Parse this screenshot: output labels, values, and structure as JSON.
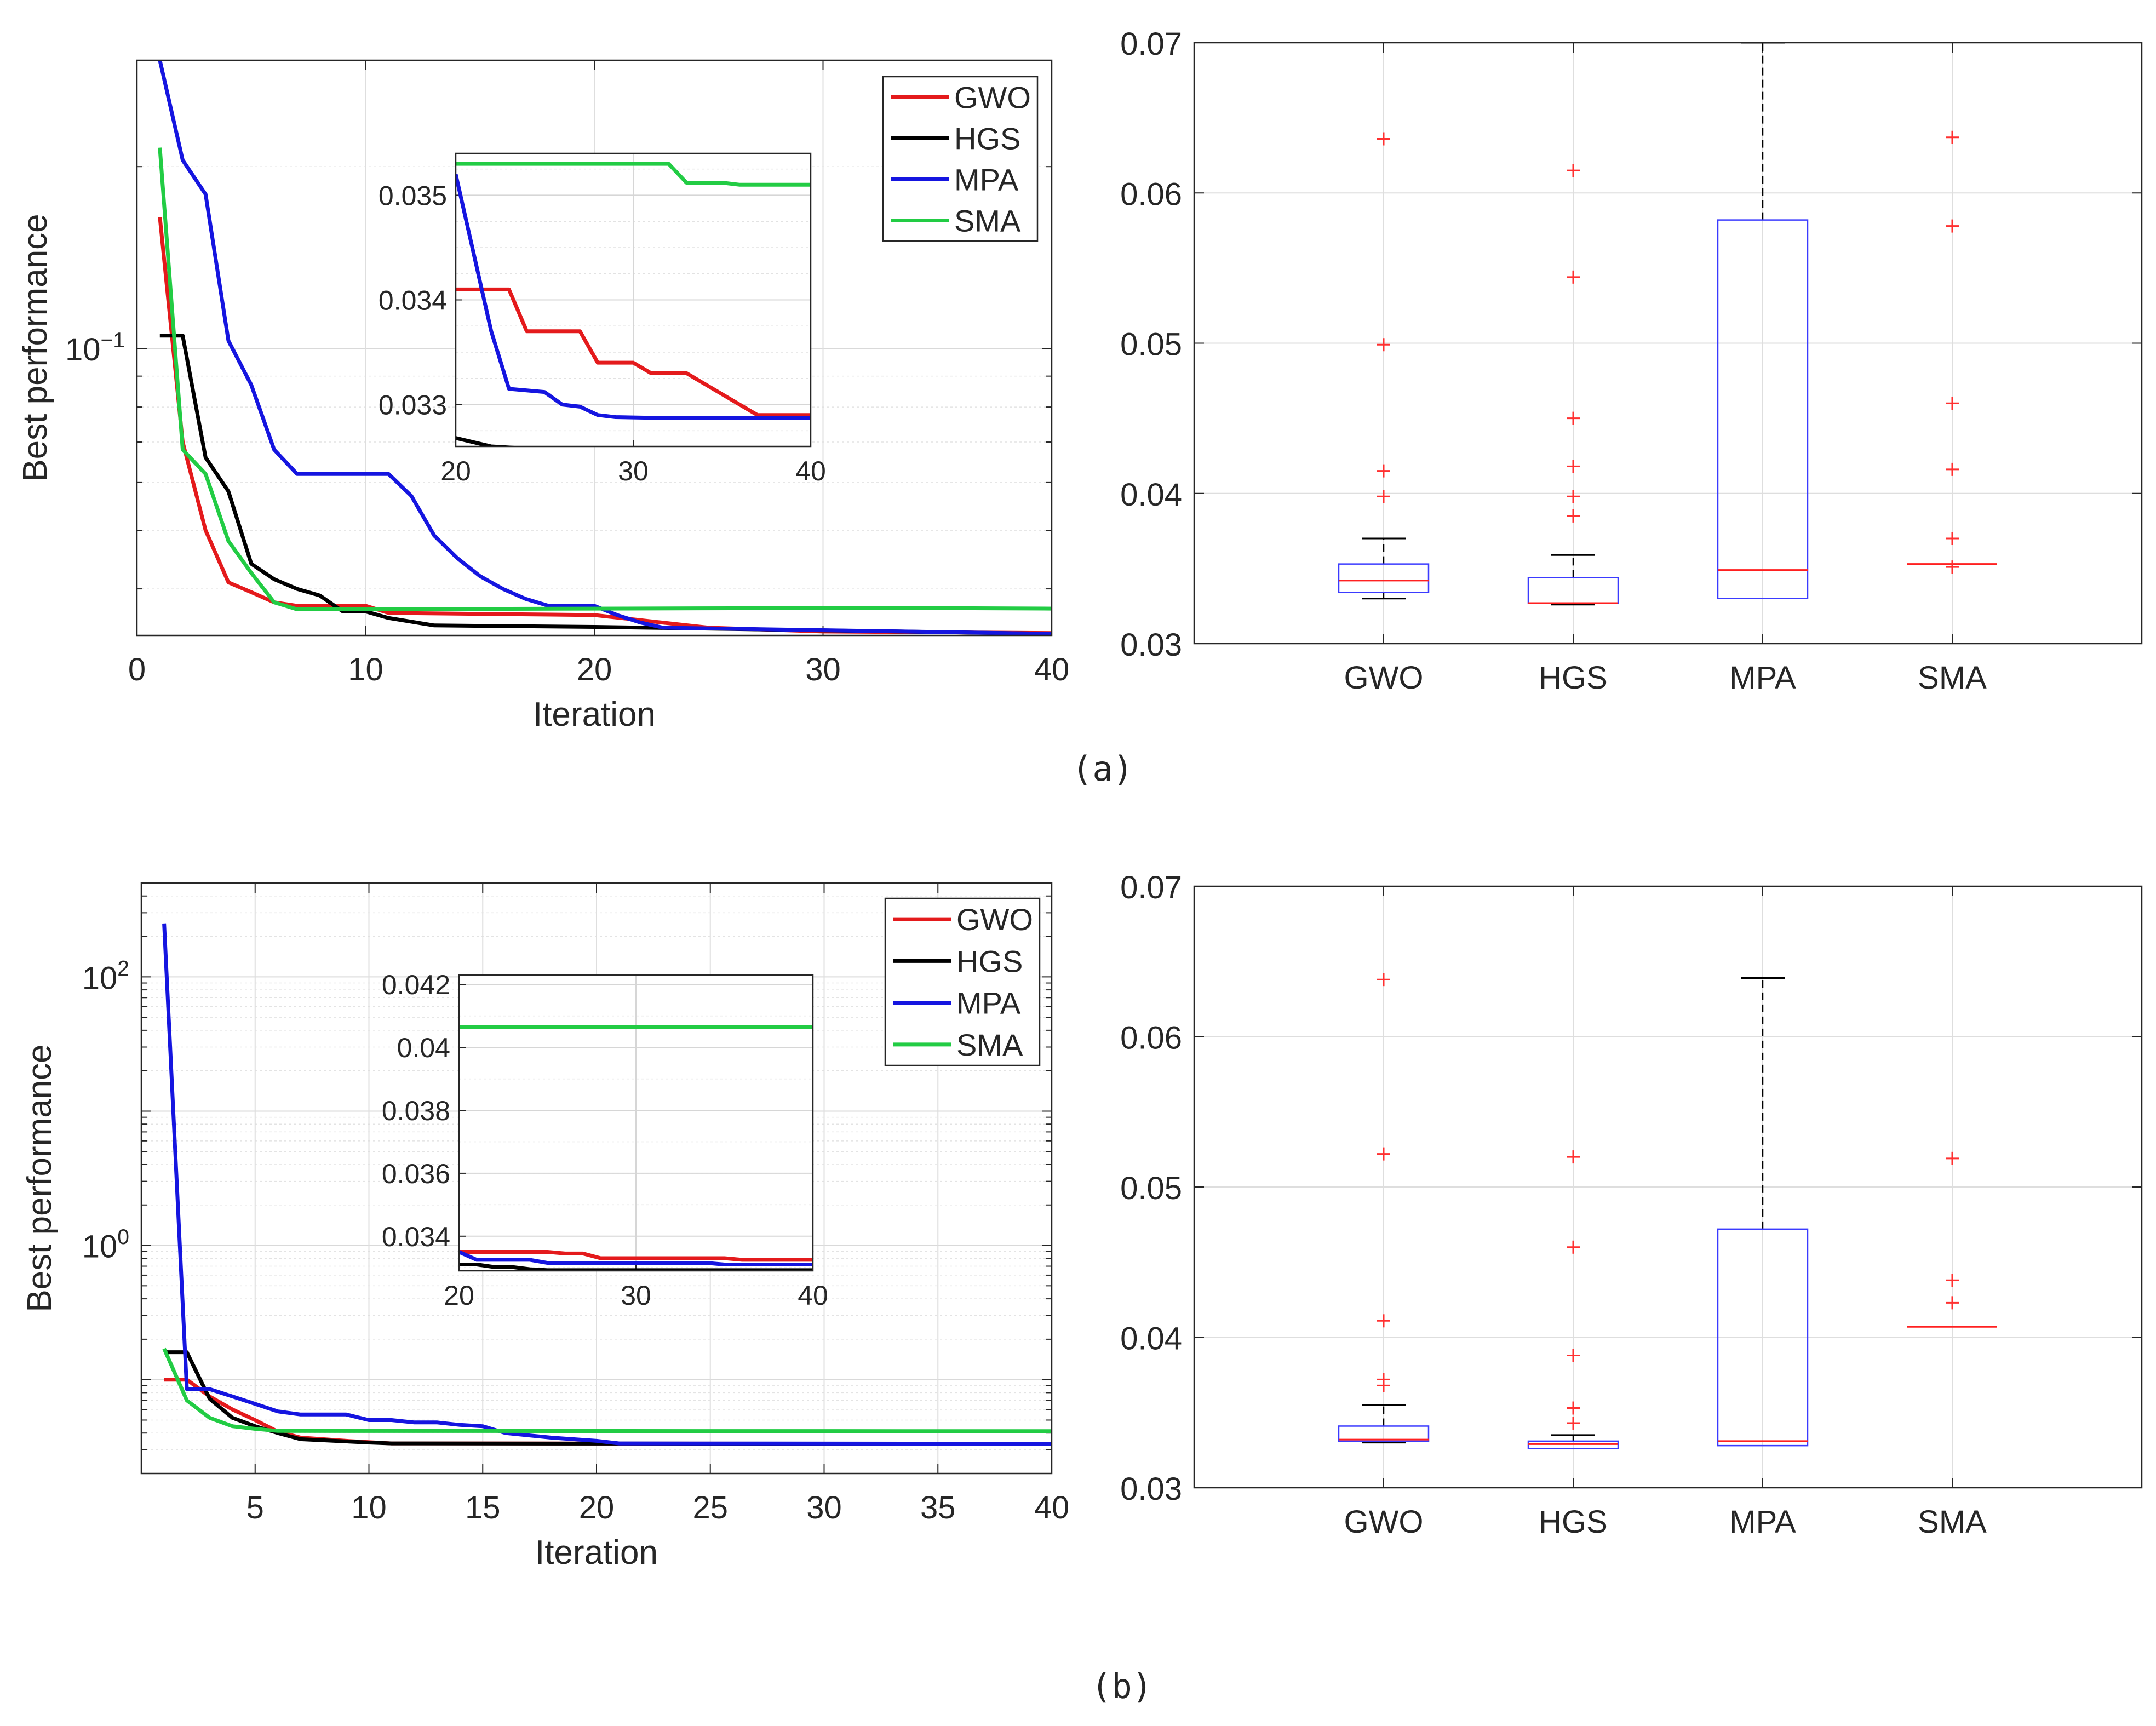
{
  "figure": {
    "caption_a": "(a)",
    "caption_b": "(b)"
  },
  "colors": {
    "GWO": "#e41a1c",
    "HGS": "#000000",
    "MPA": "#1515e0",
    "SMA": "#22cc44",
    "box": "#3b3bff",
    "median": "#ff2020",
    "outlier": "#ff3030",
    "whisker": "#000000"
  },
  "chart_data": [
    {
      "id": "a_conv",
      "type": "line",
      "xlabel": "Iteration",
      "ylabel": "Best performance",
      "xscale": "linear",
      "yscale": "log",
      "xlim": [
        0,
        40
      ],
      "ylim": [
        0.0335,
        0.3
      ],
      "xticks": [
        0,
        10,
        20,
        30,
        40
      ],
      "xtick_labels": [
        "0",
        "10",
        "20",
        "30",
        "40"
      ],
      "yticks": [
        0.1
      ],
      "ytick_labels": [
        {
          "base": "10",
          "exp": "−1"
        }
      ],
      "legend": "top-right",
      "series": [
        {
          "name": "GWO",
          "points": [
            [
              1,
              0.165
            ],
            [
              2,
              0.07
            ],
            [
              3,
              0.05
            ],
            [
              4,
              0.041
            ],
            [
              5,
              0.0395
            ],
            [
              6,
              0.038
            ],
            [
              7,
              0.0375
            ],
            [
              10,
              0.0375
            ],
            [
              11,
              0.0365
            ],
            [
              20,
              0.0362
            ],
            [
              25,
              0.0345
            ],
            [
              30,
              0.034
            ],
            [
              40,
              0.0338
            ]
          ]
        },
        {
          "name": "HGS",
          "points": [
            [
              1,
              0.105
            ],
            [
              2,
              0.105
            ],
            [
              3,
              0.066
            ],
            [
              4,
              0.058
            ],
            [
              5,
              0.044
            ],
            [
              6,
              0.0415
            ],
            [
              7,
              0.04
            ],
            [
              8,
              0.039
            ],
            [
              9,
              0.0367
            ],
            [
              10,
              0.0367
            ],
            [
              11,
              0.0358
            ],
            [
              13,
              0.0348
            ],
            [
              20,
              0.0346
            ],
            [
              40,
              0.0337
            ]
          ]
        },
        {
          "name": "MPA",
          "points": [
            [
              1,
              0.3
            ],
            [
              2,
              0.205
            ],
            [
              3,
              0.18
            ],
            [
              4,
              0.103
            ],
            [
              5,
              0.087
            ],
            [
              6,
              0.068
            ],
            [
              7,
              0.062
            ],
            [
              11,
              0.062
            ],
            [
              12,
              0.057
            ],
            [
              13,
              0.049
            ],
            [
              14,
              0.045
            ],
            [
              15,
              0.042
            ],
            [
              16,
              0.04
            ],
            [
              17,
              0.0385
            ],
            [
              18,
              0.0375
            ],
            [
              20,
              0.0375
            ],
            [
              21,
              0.0362
            ],
            [
              22,
              0.0352
            ],
            [
              23,
              0.0345
            ],
            [
              40,
              0.0337
            ]
          ]
        },
        {
          "name": "SMA",
          "points": [
            [
              1,
              0.215
            ],
            [
              2,
              0.068
            ],
            [
              3,
              0.062
            ],
            [
              4,
              0.048
            ],
            [
              5,
              0.0425
            ],
            [
              6,
              0.038
            ],
            [
              7,
              0.037
            ],
            [
              33,
              0.0372
            ],
            [
              40,
              0.0371
            ]
          ]
        }
      ],
      "inset": {
        "xlim": [
          20,
          40
        ],
        "ylim": [
          0.0326,
          0.0354
        ],
        "xticks": [
          20,
          30,
          40
        ],
        "xtick_labels": [
          "20",
          "30",
          "40"
        ],
        "yticks": [
          0.033,
          0.034,
          0.035
        ],
        "ytick_labels": [
          "0.033",
          "0.034",
          "0.035"
        ],
        "series": [
          {
            "name": "GWO",
            "points": [
              [
                20,
                0.0341
              ],
              [
                23,
                0.0341
              ],
              [
                24,
                0.0337
              ],
              [
                27,
                0.0337
              ],
              [
                28,
                0.0334
              ],
              [
                30,
                0.0334
              ],
              [
                31,
                0.0333
              ],
              [
                33,
                0.0333
              ],
              [
                34,
                0.0332
              ],
              [
                35,
                0.0331
              ],
              [
                36,
                0.033
              ],
              [
                37,
                0.0329
              ],
              [
                40,
                0.0329
              ]
            ]
          },
          {
            "name": "HGS",
            "points": [
              [
                20,
                0.03268
              ],
              [
                22,
                0.0326
              ],
              [
                24,
                0.03258
              ],
              [
                40,
                0.03256
              ]
            ]
          },
          {
            "name": "MPA",
            "points": [
              [
                20,
                0.0352
              ],
              [
                22,
                0.0337
              ],
              [
                23,
                0.03315
              ],
              [
                25,
                0.03312
              ],
              [
                26,
                0.033
              ],
              [
                27,
                0.03298
              ],
              [
                28,
                0.0329
              ],
              [
                29,
                0.03288
              ],
              [
                32,
                0.03287
              ],
              [
                40,
                0.03287
              ]
            ]
          },
          {
            "name": "SMA",
            "points": [
              [
                20,
                0.0353
              ],
              [
                32,
                0.0353
              ],
              [
                33,
                0.03512
              ],
              [
                35,
                0.03512
              ],
              [
                36,
                0.0351
              ],
              [
                40,
                0.0351
              ]
            ]
          }
        ]
      }
    },
    {
      "id": "a_box",
      "type": "box",
      "ylim": [
        0.03,
        0.07
      ],
      "yticks": [
        0.03,
        0.04,
        0.05,
        0.06,
        0.07
      ],
      "ytick_labels": [
        "0.03",
        "0.04",
        "0.05",
        "0.06",
        "0.07"
      ],
      "categories": [
        "GWO",
        "HGS",
        "MPA",
        "SMA"
      ],
      "boxes": [
        {
          "name": "GWO",
          "whisker_low": 0.033,
          "q1": 0.0334,
          "median": 0.0342,
          "q3": 0.0353,
          "whisker_high": 0.037,
          "outliers": [
            0.0398,
            0.0415,
            0.0499,
            0.0636
          ]
        },
        {
          "name": "HGS",
          "whisker_low": 0.0326,
          "q1": 0.0327,
          "median": 0.0327,
          "q3": 0.0344,
          "whisker_high": 0.0359,
          "outliers": [
            0.0385,
            0.0398,
            0.0418,
            0.045,
            0.0544,
            0.0615
          ]
        },
        {
          "name": "MPA",
          "whisker_low": 0.033,
          "q1": 0.033,
          "median": 0.0349,
          "q3": 0.0582,
          "whisker_high": 0.07,
          "outliers": []
        },
        {
          "name": "SMA",
          "whisker_low": 0.0353,
          "q1": 0.0353,
          "median": 0.0353,
          "q3": 0.0353,
          "whisker_high": 0.0353,
          "outliers": [
            0.0351,
            0.037,
            0.0416,
            0.046,
            0.0578,
            0.0637
          ]
        }
      ]
    },
    {
      "id": "b_conv",
      "type": "line",
      "xlabel": "Iteration",
      "ylabel": "Best performance",
      "xscale": "linear",
      "yscale": "log",
      "xlim": [
        0,
        40
      ],
      "ylim": [
        0.02,
        500
      ],
      "xticks": [
        5,
        10,
        15,
        20,
        25,
        30,
        35,
        40
      ],
      "xtick_labels": [
        "5",
        "10",
        "15",
        "20",
        "25",
        "30",
        "35",
        "40"
      ],
      "yticks": [
        1,
        100
      ],
      "ytick_labels": [
        {
          "base": "10",
          "exp": "0"
        },
        {
          "base": "10",
          "exp": "2"
        }
      ],
      "legend": "top-right",
      "series": [
        {
          "name": "GWO",
          "points": [
            [
              1,
              0.1
            ],
            [
              2,
              0.1
            ],
            [
              3,
              0.075
            ],
            [
              4,
              0.06
            ],
            [
              5,
              0.05
            ],
            [
              6,
              0.041
            ],
            [
              7,
              0.037
            ],
            [
              9,
              0.035
            ],
            [
              11,
              0.0335
            ],
            [
              40,
              0.0333
            ]
          ]
        },
        {
          "name": "HGS",
          "points": [
            [
              1,
              0.16
            ],
            [
              2,
              0.16
            ],
            [
              3,
              0.072
            ],
            [
              4,
              0.052
            ],
            [
              5,
              0.045
            ],
            [
              6,
              0.04
            ],
            [
              7,
              0.036
            ],
            [
              10,
              0.034
            ],
            [
              11,
              0.0335
            ],
            [
              40,
              0.0332
            ]
          ]
        },
        {
          "name": "MPA",
          "points": [
            [
              1,
              250
            ],
            [
              2,
              0.085
            ],
            [
              3,
              0.085
            ],
            [
              4,
              0.075
            ],
            [
              5,
              0.066
            ],
            [
              6,
              0.058
            ],
            [
              7,
              0.055
            ],
            [
              9,
              0.055
            ],
            [
              10,
              0.05
            ],
            [
              11,
              0.05
            ],
            [
              12,
              0.048
            ],
            [
              13,
              0.048
            ],
            [
              14,
              0.046
            ],
            [
              15,
              0.045
            ],
            [
              16,
              0.04
            ],
            [
              18,
              0.037
            ],
            [
              20,
              0.035
            ],
            [
              21,
              0.0335
            ],
            [
              40,
              0.0333
            ]
          ]
        },
        {
          "name": "SMA",
          "points": [
            [
              1,
              0.17
            ],
            [
              2,
              0.07
            ],
            [
              3,
              0.052
            ],
            [
              4,
              0.045
            ],
            [
              5,
              0.043
            ],
            [
              6,
              0.0415
            ],
            [
              40,
              0.0413
            ]
          ]
        }
      ],
      "inset": {
        "xlim": [
          20,
          40
        ],
        "ylim": [
          0.0329,
          0.0423
        ],
        "xticks": [
          20,
          30,
          40
        ],
        "xtick_labels": [
          "20",
          "30",
          "40"
        ],
        "yticks": [
          0.034,
          0.036,
          0.038,
          0.04,
          0.042
        ],
        "ytick_labels": [
          "0.034",
          "0.036",
          "0.038",
          "0.04",
          "0.042"
        ],
        "series": [
          {
            "name": "GWO",
            "points": [
              [
                20,
                0.0335
              ],
              [
                25,
                0.0335
              ],
              [
                26,
                0.03345
              ],
              [
                27,
                0.03345
              ],
              [
                28,
                0.0333
              ],
              [
                35,
                0.0333
              ],
              [
                36,
                0.03325
              ],
              [
                40,
                0.03325
              ]
            ]
          },
          {
            "name": "HGS",
            "points": [
              [
                20,
                0.0331
              ],
              [
                21,
                0.0331
              ],
              [
                22,
                0.03302
              ],
              [
                23,
                0.03302
              ],
              [
                24,
                0.03295
              ],
              [
                25,
                0.03292
              ],
              [
                40,
                0.03292
              ]
            ]
          },
          {
            "name": "MPA",
            "points": [
              [
                20,
                0.0335
              ],
              [
                21,
                0.03325
              ],
              [
                24,
                0.03325
              ],
              [
                25,
                0.03315
              ],
              [
                34,
                0.03315
              ],
              [
                35,
                0.0331
              ],
              [
                40,
                0.0331
              ]
            ]
          },
          {
            "name": "SMA",
            "points": [
              [
                20,
                0.04065
              ],
              [
                40,
                0.04065
              ]
            ]
          }
        ]
      }
    },
    {
      "id": "b_box",
      "type": "box",
      "ylim": [
        0.03,
        0.07
      ],
      "yticks": [
        0.03,
        0.04,
        0.05,
        0.06,
        0.07
      ],
      "ytick_labels": [
        "0.03",
        "0.04",
        "0.05",
        "0.06",
        "0.07"
      ],
      "categories": [
        "GWO",
        "HGS",
        "MPA",
        "SMA"
      ],
      "boxes": [
        {
          "name": "GWO",
          "whisker_low": 0.033,
          "q1": 0.0331,
          "median": 0.0332,
          "q3": 0.0341,
          "whisker_high": 0.0355,
          "outliers": [
            0.0368,
            0.0372,
            0.0411,
            0.0522,
            0.0638
          ]
        },
        {
          "name": "HGS",
          "whisker_low": 0.0326,
          "q1": 0.0326,
          "median": 0.0329,
          "q3": 0.0331,
          "whisker_high": 0.0335,
          "outliers": [
            0.0343,
            0.0353,
            0.0388,
            0.046,
            0.052
          ]
        },
        {
          "name": "MPA",
          "whisker_low": 0.0328,
          "q1": 0.0328,
          "median": 0.0331,
          "q3": 0.0472,
          "whisker_high": 0.0639,
          "outliers": []
        },
        {
          "name": "SMA",
          "whisker_low": 0.0407,
          "q1": 0.0407,
          "median": 0.0407,
          "q3": 0.0407,
          "whisker_high": 0.0407,
          "outliers": [
            0.0423,
            0.0438,
            0.0519
          ]
        }
      ]
    }
  ]
}
